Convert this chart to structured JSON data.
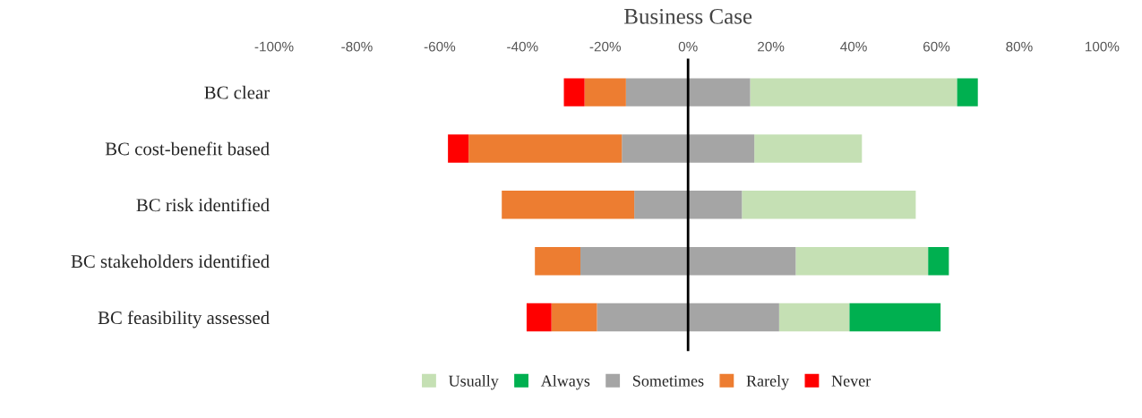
{
  "chart_data": {
    "type": "bar",
    "orientation": "horizontal",
    "title": "Business Case",
    "categories": [
      "BC clear",
      "BC cost-benefit based",
      "BC risk identified",
      "BC stakeholders identified",
      "BC feasibility assessed"
    ],
    "series": [
      {
        "name": "Usually",
        "color": "#c5e0b4",
        "values": [
          50,
          26,
          42,
          32,
          17
        ],
        "base": [
          15,
          16,
          13,
          26,
          22
        ]
      },
      {
        "name": "Always",
        "color": "#00b050",
        "values": [
          5,
          null,
          null,
          5,
          22
        ],
        "base": [
          65,
          null,
          null,
          58,
          39
        ]
      },
      {
        "name": "Sometimes",
        "color": "#a5a5a5",
        "values": [
          30,
          32,
          26,
          52,
          44
        ],
        "base": [
          -15,
          -16,
          -13,
          -26,
          -22
        ]
      },
      {
        "name": "Rarely",
        "color": "#ed7d31",
        "values": [
          10,
          37,
          32,
          11,
          11
        ],
        "base": [
          -25,
          -53,
          -45,
          -37,
          -33
        ]
      },
      {
        "name": "Never",
        "color": "#ff0000",
        "values": [
          5,
          5,
          null,
          null,
          6
        ],
        "base": [
          -30,
          -58,
          null,
          null,
          -39
        ]
      }
    ],
    "xlim": [
      -100,
      100
    ],
    "xticks": [
      {
        "value": -100,
        "label": "-100%"
      },
      {
        "value": -80,
        "label": "-80%"
      },
      {
        "value": -60,
        "label": "-60%"
      },
      {
        "value": -40,
        "label": "-40%"
      },
      {
        "value": -20,
        "label": "-20%"
      },
      {
        "value": 0,
        "label": "0%"
      },
      {
        "value": 20,
        "label": "20%"
      },
      {
        "value": 40,
        "label": "40%"
      },
      {
        "value": 60,
        "label": "60%"
      },
      {
        "value": 80,
        "label": "80%"
      },
      {
        "value": 100,
        "label": "100%"
      }
    ],
    "ref_lines": [
      {
        "axis": "x",
        "value": 0,
        "color": "#000000",
        "line_style": "solid"
      }
    ],
    "grid": false,
    "legend": "bottom"
  }
}
